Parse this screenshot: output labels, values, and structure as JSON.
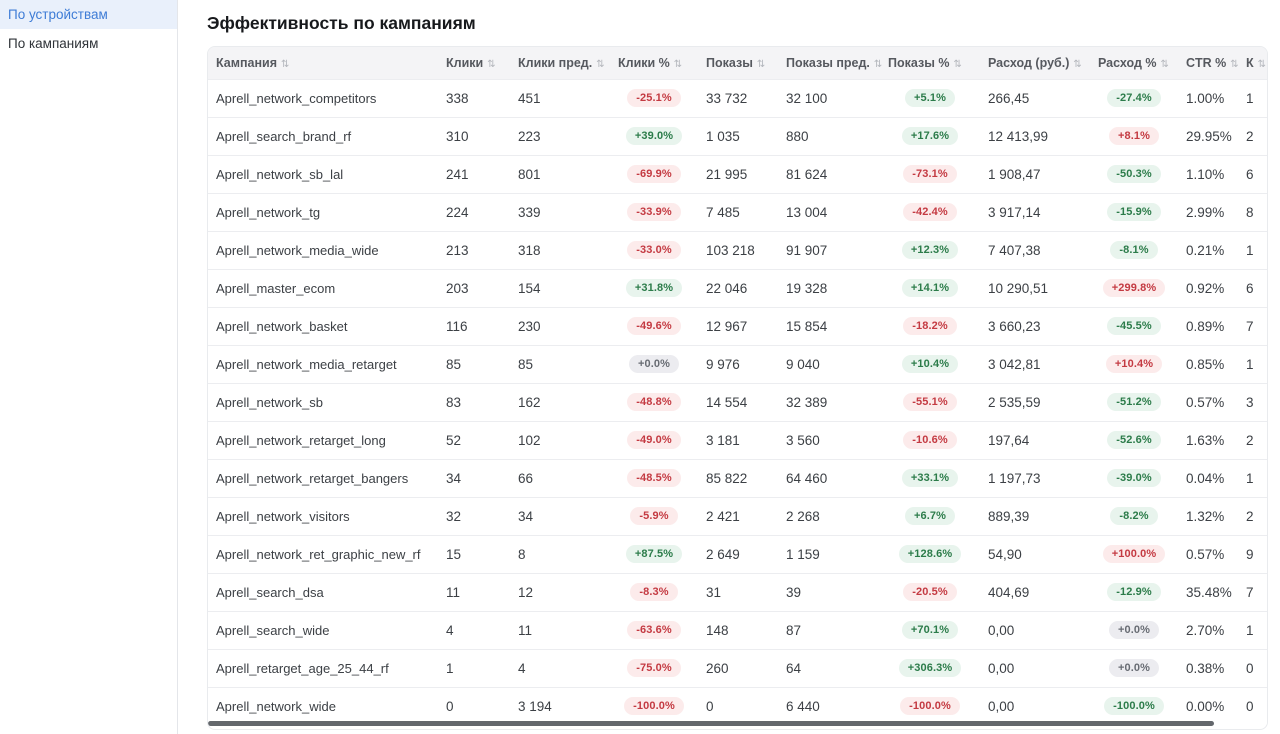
{
  "sidebar": {
    "items": [
      {
        "label": "По устройствам",
        "active": true
      },
      {
        "label": "По кампаниям",
        "active": false
      }
    ]
  },
  "main": {
    "title": "Эффективность по кампаниям"
  },
  "colors": {
    "accent_blue": "#3e7cd6",
    "sidebar_active_bg": "#e9f0fb",
    "badge_red_bg": "#fcebeb",
    "badge_red_text": "#c43a42",
    "badge_green_bg": "#e8f4ed",
    "badge_green_text": "#2c7c4a",
    "badge_gray_bg": "#ececf0",
    "badge_gray_text": "#686c73",
    "header_bg": "#f4f4f6"
  },
  "table": {
    "sort_icon": "⇅",
    "columns": [
      {
        "key": "name",
        "label": "Кампания",
        "type": "text"
      },
      {
        "key": "clicks",
        "label": "Клики",
        "type": "num"
      },
      {
        "key": "clicks_prev",
        "label": "Клики пред.",
        "type": "num"
      },
      {
        "key": "clicks_pct",
        "label": "Клики %",
        "type": "badge"
      },
      {
        "key": "shows",
        "label": "Показы",
        "type": "num"
      },
      {
        "key": "shows_prev",
        "label": "Показы пред.",
        "type": "num"
      },
      {
        "key": "shows_pct",
        "label": "Показы %",
        "type": "badge"
      },
      {
        "key": "spend",
        "label": "Расход (руб.)",
        "type": "num"
      },
      {
        "key": "spend_pct",
        "label": "Расход %",
        "type": "badge"
      },
      {
        "key": "ctr",
        "label": "CTR %",
        "type": "num"
      },
      {
        "key": "last",
        "label": "К",
        "type": "num"
      }
    ],
    "rows": [
      {
        "name": "Aprell_network_competitors",
        "clicks": "338",
        "clicks_prev": "451",
        "clicks_pct": {
          "text": "-25.1%",
          "color": "red"
        },
        "shows": "33 732",
        "shows_prev": "32 100",
        "shows_pct": {
          "text": "+5.1%",
          "color": "green"
        },
        "spend": "266,45",
        "spend_pct": {
          "text": "-27.4%",
          "color": "green"
        },
        "ctr": "1.00%",
        "last": "1"
      },
      {
        "name": "Aprell_search_brand_rf",
        "clicks": "310",
        "clicks_prev": "223",
        "clicks_pct": {
          "text": "+39.0%",
          "color": "green"
        },
        "shows": "1 035",
        "shows_prev": "880",
        "shows_pct": {
          "text": "+17.6%",
          "color": "green"
        },
        "spend": "12 413,99",
        "spend_pct": {
          "text": "+8.1%",
          "color": "red"
        },
        "ctr": "29.95%",
        "last": "2"
      },
      {
        "name": "Aprell_network_sb_lal",
        "clicks": "241",
        "clicks_prev": "801",
        "clicks_pct": {
          "text": "-69.9%",
          "color": "red"
        },
        "shows": "21 995",
        "shows_prev": "81 624",
        "shows_pct": {
          "text": "-73.1%",
          "color": "red"
        },
        "spend": "1 908,47",
        "spend_pct": {
          "text": "-50.3%",
          "color": "green"
        },
        "ctr": "1.10%",
        "last": "6"
      },
      {
        "name": "Aprell_network_tg",
        "clicks": "224",
        "clicks_prev": "339",
        "clicks_pct": {
          "text": "-33.9%",
          "color": "red"
        },
        "shows": "7 485",
        "shows_prev": "13 004",
        "shows_pct": {
          "text": "-42.4%",
          "color": "red"
        },
        "spend": "3 917,14",
        "spend_pct": {
          "text": "-15.9%",
          "color": "green"
        },
        "ctr": "2.99%",
        "last": "8"
      },
      {
        "name": "Aprell_network_media_wide",
        "clicks": "213",
        "clicks_prev": "318",
        "clicks_pct": {
          "text": "-33.0%",
          "color": "red"
        },
        "shows": "103 218",
        "shows_prev": "91 907",
        "shows_pct": {
          "text": "+12.3%",
          "color": "green"
        },
        "spend": "7 407,38",
        "spend_pct": {
          "text": "-8.1%",
          "color": "green"
        },
        "ctr": "0.21%",
        "last": "1"
      },
      {
        "name": "Aprell_master_ecom",
        "clicks": "203",
        "clicks_prev": "154",
        "clicks_pct": {
          "text": "+31.8%",
          "color": "green"
        },
        "shows": "22 046",
        "shows_prev": "19 328",
        "shows_pct": {
          "text": "+14.1%",
          "color": "green"
        },
        "spend": "10 290,51",
        "spend_pct": {
          "text": "+299.8%",
          "color": "red"
        },
        "ctr": "0.92%",
        "last": "6"
      },
      {
        "name": "Aprell_network_basket",
        "clicks": "116",
        "clicks_prev": "230",
        "clicks_pct": {
          "text": "-49.6%",
          "color": "red"
        },
        "shows": "12 967",
        "shows_prev": "15 854",
        "shows_pct": {
          "text": "-18.2%",
          "color": "red"
        },
        "spend": "3 660,23",
        "spend_pct": {
          "text": "-45.5%",
          "color": "green"
        },
        "ctr": "0.89%",
        "last": "7"
      },
      {
        "name": "Aprell_network_media_retarget",
        "clicks": "85",
        "clicks_prev": "85",
        "clicks_pct": {
          "text": "+0.0%",
          "color": "gray"
        },
        "shows": "9 976",
        "shows_prev": "9 040",
        "shows_pct": {
          "text": "+10.4%",
          "color": "green"
        },
        "spend": "3 042,81",
        "spend_pct": {
          "text": "+10.4%",
          "color": "red"
        },
        "ctr": "0.85%",
        "last": "1"
      },
      {
        "name": "Aprell_network_sb",
        "clicks": "83",
        "clicks_prev": "162",
        "clicks_pct": {
          "text": "-48.8%",
          "color": "red"
        },
        "shows": "14 554",
        "shows_prev": "32 389",
        "shows_pct": {
          "text": "-55.1%",
          "color": "red"
        },
        "spend": "2 535,59",
        "spend_pct": {
          "text": "-51.2%",
          "color": "green"
        },
        "ctr": "0.57%",
        "last": "3"
      },
      {
        "name": "Aprell_network_retarget_long",
        "clicks": "52",
        "clicks_prev": "102",
        "clicks_pct": {
          "text": "-49.0%",
          "color": "red"
        },
        "shows": "3 181",
        "shows_prev": "3 560",
        "shows_pct": {
          "text": "-10.6%",
          "color": "red"
        },
        "spend": "197,64",
        "spend_pct": {
          "text": "-52.6%",
          "color": "green"
        },
        "ctr": "1.63%",
        "last": "2"
      },
      {
        "name": "Aprell_network_retarget_bangers",
        "clicks": "34",
        "clicks_prev": "66",
        "clicks_pct": {
          "text": "-48.5%",
          "color": "red"
        },
        "shows": "85 822",
        "shows_prev": "64 460",
        "shows_pct": {
          "text": "+33.1%",
          "color": "green"
        },
        "spend": "1 197,73",
        "spend_pct": {
          "text": "-39.0%",
          "color": "green"
        },
        "ctr": "0.04%",
        "last": "1"
      },
      {
        "name": "Aprell_network_visitors",
        "clicks": "32",
        "clicks_prev": "34",
        "clicks_pct": {
          "text": "-5.9%",
          "color": "red"
        },
        "shows": "2 421",
        "shows_prev": "2 268",
        "shows_pct": {
          "text": "+6.7%",
          "color": "green"
        },
        "spend": "889,39",
        "spend_pct": {
          "text": "-8.2%",
          "color": "green"
        },
        "ctr": "1.32%",
        "last": "2"
      },
      {
        "name": "Aprell_network_ret_graphic_new_rf",
        "clicks": "15",
        "clicks_prev": "8",
        "clicks_pct": {
          "text": "+87.5%",
          "color": "green"
        },
        "shows": "2 649",
        "shows_prev": "1 159",
        "shows_pct": {
          "text": "+128.6%",
          "color": "green"
        },
        "spend": "54,90",
        "spend_pct": {
          "text": "+100.0%",
          "color": "red"
        },
        "ctr": "0.57%",
        "last": "9"
      },
      {
        "name": "Aprell_search_dsa",
        "clicks": "11",
        "clicks_prev": "12",
        "clicks_pct": {
          "text": "-8.3%",
          "color": "red"
        },
        "shows": "31",
        "shows_prev": "39",
        "shows_pct": {
          "text": "-20.5%",
          "color": "red"
        },
        "spend": "404,69",
        "spend_pct": {
          "text": "-12.9%",
          "color": "green"
        },
        "ctr": "35.48%",
        "last": "7"
      },
      {
        "name": "Aprell_search_wide",
        "clicks": "4",
        "clicks_prev": "11",
        "clicks_pct": {
          "text": "-63.6%",
          "color": "red"
        },
        "shows": "148",
        "shows_prev": "87",
        "shows_pct": {
          "text": "+70.1%",
          "color": "green"
        },
        "spend": "0,00",
        "spend_pct": {
          "text": "+0.0%",
          "color": "gray"
        },
        "ctr": "2.70%",
        "last": "1"
      },
      {
        "name": "Aprell_retarget_age_25_44_rf",
        "clicks": "1",
        "clicks_prev": "4",
        "clicks_pct": {
          "text": "-75.0%",
          "color": "red"
        },
        "shows": "260",
        "shows_prev": "64",
        "shows_pct": {
          "text": "+306.3%",
          "color": "green"
        },
        "spend": "0,00",
        "spend_pct": {
          "text": "+0.0%",
          "color": "gray"
        },
        "ctr": "0.38%",
        "last": "0"
      },
      {
        "name": "Aprell_network_wide",
        "clicks": "0",
        "clicks_prev": "3 194",
        "clicks_pct": {
          "text": "-100.0%",
          "color": "red"
        },
        "shows": "0",
        "shows_prev": "6 440",
        "shows_pct": {
          "text": "-100.0%",
          "color": "red"
        },
        "spend": "0,00",
        "spend_pct": {
          "text": "-100.0%",
          "color": "green"
        },
        "ctr": "0.00%",
        "last": "0"
      }
    ]
  }
}
